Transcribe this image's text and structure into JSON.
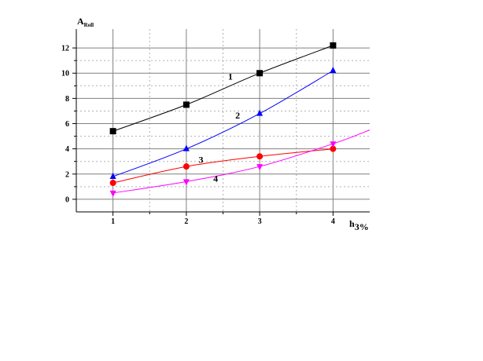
{
  "chart_data": {
    "type": "line",
    "title": "",
    "xlabel": {
      "main": "h",
      "sub": "3%"
    },
    "ylabel": {
      "main": "A",
      "sub": "Roll"
    },
    "xlim": [
      0.5,
      4.5
    ],
    "ylim": [
      -1,
      13.5
    ],
    "xticks": [
      1,
      2,
      3,
      4
    ],
    "yticks": [
      0,
      2,
      4,
      6,
      8,
      10,
      12
    ],
    "grid": true,
    "series": [
      {
        "name": "1",
        "marker": "square",
        "color": "#000000",
        "x": [
          1,
          2,
          3,
          4
        ],
        "y": [
          5.4,
          7.5,
          10.0,
          12.2
        ],
        "fit": [
          [
            1,
            5.4
          ],
          [
            2,
            7.5
          ],
          [
            3,
            10.0
          ],
          [
            4,
            12.2
          ]
        ]
      },
      {
        "name": "2",
        "marker": "triangle-up",
        "color": "#0000ff",
        "x": [
          1,
          2,
          3,
          4
        ],
        "y": [
          1.8,
          4.0,
          6.8,
          10.2
        ],
        "fit": [
          [
            1,
            1.8
          ],
          [
            2,
            4.0
          ],
          [
            3,
            6.8
          ],
          [
            4,
            10.2
          ]
        ]
      },
      {
        "name": "3",
        "marker": "circle",
        "color": "#ff0000",
        "x": [
          1,
          2,
          3,
          4
        ],
        "y": [
          1.3,
          2.6,
          3.4,
          4.0
        ],
        "fit": [
          [
            1,
            1.3
          ],
          [
            2,
            2.6
          ],
          [
            3,
            3.4
          ],
          [
            4,
            4.0
          ]
        ]
      },
      {
        "name": "4",
        "marker": "triangle-down",
        "color": "#ff00ff",
        "x": [
          1,
          2,
          3,
          4
        ],
        "y": [
          0.5,
          1.4,
          2.6,
          4.4
        ],
        "fit": [
          [
            1,
            0.5
          ],
          [
            2,
            1.4
          ],
          [
            3,
            2.6
          ],
          [
            4,
            4.4
          ],
          [
            4.5,
            5.5
          ]
        ]
      }
    ]
  }
}
